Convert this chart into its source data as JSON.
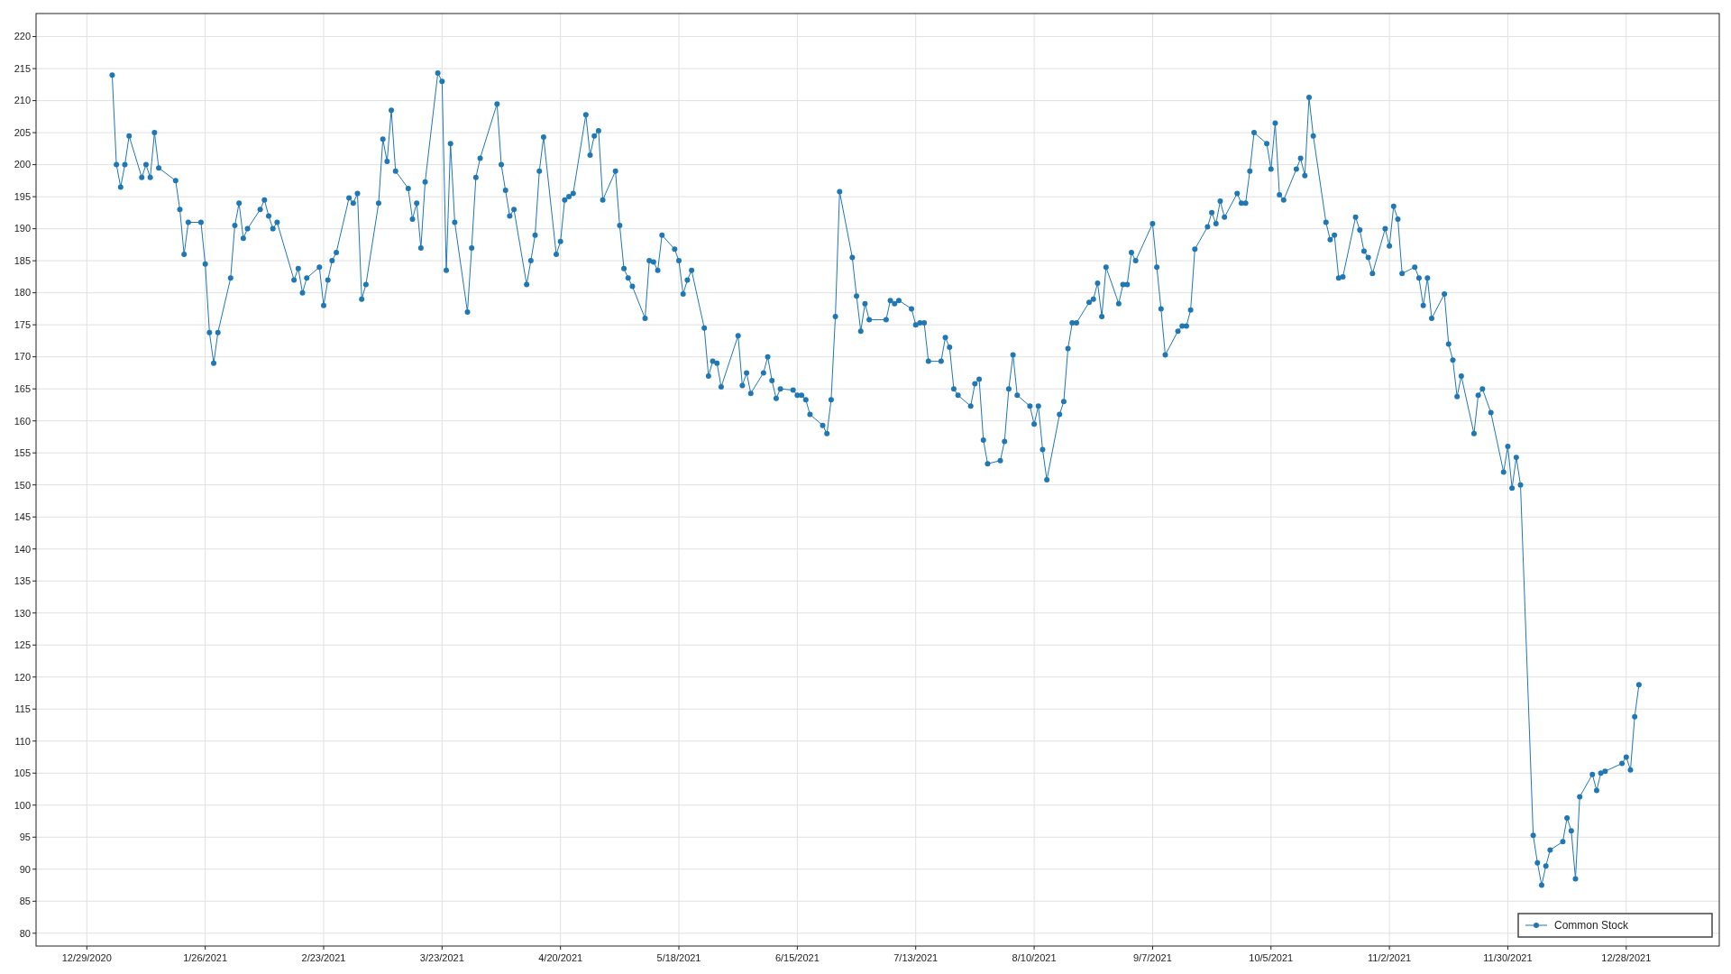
{
  "chart_data": {
    "type": "line",
    "marker": "circle",
    "grid": true,
    "legend": "bottom right",
    "line_style": "solid",
    "xlim": [
      "2020-12-17",
      "2022-01-19"
    ],
    "xticks": [
      {
        "value": "2020-12-29",
        "label": "12/29/2020"
      },
      {
        "value": "2021-01-26",
        "label": "1/26/2021"
      },
      {
        "value": "2021-02-23",
        "label": "2/23/2021"
      },
      {
        "value": "2021-03-23",
        "label": "3/23/2021"
      },
      {
        "value": "2021-04-20",
        "label": "4/20/2021"
      },
      {
        "value": "2021-05-18",
        "label": "5/18/2021"
      },
      {
        "value": "2021-06-15",
        "label": "6/15/2021"
      },
      {
        "value": "2021-07-13",
        "label": "7/13/2021"
      },
      {
        "value": "2021-08-10",
        "label": "8/10/2021"
      },
      {
        "value": "2021-09-07",
        "label": "9/7/2021"
      },
      {
        "value": "2021-10-05",
        "label": "10/5/2021"
      },
      {
        "value": "2021-11-02",
        "label": "11/2/2021"
      },
      {
        "value": "2021-11-30",
        "label": "11/30/2021"
      },
      {
        "value": "2021-12-28",
        "label": "12/28/2021"
      }
    ],
    "ylim": [
      78,
      223.6
    ],
    "yticks": [
      80,
      85,
      90,
      95,
      100,
      105,
      110,
      115,
      120,
      125,
      130,
      135,
      140,
      145,
      150,
      155,
      160,
      165,
      170,
      175,
      180,
      185,
      190,
      195,
      200,
      205,
      210,
      215,
      220
    ],
    "series": [
      {
        "name": "Common Stock",
        "color": "#1f77b4",
        "x": [
          "2021-01-04",
          "2021-01-05",
          "2021-01-06",
          "2021-01-07",
          "2021-01-08",
          "2021-01-11",
          "2021-01-12",
          "2021-01-13",
          "2021-01-14",
          "2021-01-15",
          "2021-01-19",
          "2021-01-20",
          "2021-01-21",
          "2021-01-22",
          "2021-01-25",
          "2021-01-26",
          "2021-01-27",
          "2021-01-28",
          "2021-01-29",
          "2021-02-01",
          "2021-02-02",
          "2021-02-03",
          "2021-02-04",
          "2021-02-05",
          "2021-02-08",
          "2021-02-09",
          "2021-02-10",
          "2021-02-11",
          "2021-02-12",
          "2021-02-16",
          "2021-02-17",
          "2021-02-18",
          "2021-02-19",
          "2021-02-22",
          "2021-02-23",
          "2021-02-24",
          "2021-02-25",
          "2021-02-26",
          "2021-03-01",
          "2021-03-02",
          "2021-03-03",
          "2021-03-04",
          "2021-03-05",
          "2021-03-08",
          "2021-03-09",
          "2021-03-10",
          "2021-03-11",
          "2021-03-12",
          "2021-03-15",
          "2021-03-16",
          "2021-03-17",
          "2021-03-18",
          "2021-03-19",
          "2021-03-22",
          "2021-03-23",
          "2021-03-24",
          "2021-03-25",
          "2021-03-26",
          "2021-03-29",
          "2021-03-30",
          "2021-03-31",
          "2021-04-01",
          "2021-04-05",
          "2021-04-06",
          "2021-04-07",
          "2021-04-08",
          "2021-04-09",
          "2021-04-12",
          "2021-04-13",
          "2021-04-14",
          "2021-04-15",
          "2021-04-16",
          "2021-04-19",
          "2021-04-20",
          "2021-04-21",
          "2021-04-22",
          "2021-04-23",
          "2021-04-26",
          "2021-04-27",
          "2021-04-28",
          "2021-04-29",
          "2021-04-30",
          "2021-05-03",
          "2021-05-04",
          "2021-05-05",
          "2021-05-06",
          "2021-05-07",
          "2021-05-10",
          "2021-05-11",
          "2021-05-12",
          "2021-05-13",
          "2021-05-14",
          "2021-05-17",
          "2021-05-18",
          "2021-05-19",
          "2021-05-20",
          "2021-05-21",
          "2021-05-24",
          "2021-05-25",
          "2021-05-26",
          "2021-05-27",
          "2021-05-28",
          "2021-06-01",
          "2021-06-02",
          "2021-06-03",
          "2021-06-04",
          "2021-06-07",
          "2021-06-08",
          "2021-06-09",
          "2021-06-10",
          "2021-06-11",
          "2021-06-14",
          "2021-06-15",
          "2021-06-16",
          "2021-06-17",
          "2021-06-18",
          "2021-06-21",
          "2021-06-22",
          "2021-06-23",
          "2021-06-24",
          "2021-06-25",
          "2021-06-28",
          "2021-06-29",
          "2021-06-30",
          "2021-07-01",
          "2021-07-02",
          "2021-07-06",
          "2021-07-07",
          "2021-07-08",
          "2021-07-09",
          "2021-07-12",
          "2021-07-13",
          "2021-07-14",
          "2021-07-15",
          "2021-07-16",
          "2021-07-19",
          "2021-07-20",
          "2021-07-21",
          "2021-07-22",
          "2021-07-23",
          "2021-07-26",
          "2021-07-27",
          "2021-07-28",
          "2021-07-29",
          "2021-07-30",
          "2021-08-02",
          "2021-08-03",
          "2021-08-04",
          "2021-08-05",
          "2021-08-06",
          "2021-08-09",
          "2021-08-10",
          "2021-08-11",
          "2021-08-12",
          "2021-08-13",
          "2021-08-16",
          "2021-08-17",
          "2021-08-18",
          "2021-08-19",
          "2021-08-20",
          "2021-08-23",
          "2021-08-24",
          "2021-08-25",
          "2021-08-26",
          "2021-08-27",
          "2021-08-30",
          "2021-08-31",
          "2021-09-01",
          "2021-09-02",
          "2021-09-03",
          "2021-09-07",
          "2021-09-08",
          "2021-09-09",
          "2021-09-10",
          "2021-09-13",
          "2021-09-14",
          "2021-09-15",
          "2021-09-16",
          "2021-09-17",
          "2021-09-20",
          "2021-09-21",
          "2021-09-22",
          "2021-09-23",
          "2021-09-24",
          "2021-09-27",
          "2021-09-28",
          "2021-09-29",
          "2021-09-30",
          "2021-10-01",
          "2021-10-04",
          "2021-10-05",
          "2021-10-06",
          "2021-10-07",
          "2021-10-08",
          "2021-10-11",
          "2021-10-12",
          "2021-10-13",
          "2021-10-14",
          "2021-10-15",
          "2021-10-18",
          "2021-10-19",
          "2021-10-20",
          "2021-10-21",
          "2021-10-22",
          "2021-10-25",
          "2021-10-26",
          "2021-10-27",
          "2021-10-28",
          "2021-10-29",
          "2021-11-01",
          "2021-11-02",
          "2021-11-03",
          "2021-11-04",
          "2021-11-05",
          "2021-11-08",
          "2021-11-09",
          "2021-11-10",
          "2021-11-11",
          "2021-11-12",
          "2021-11-15",
          "2021-11-16",
          "2021-11-17",
          "2021-11-18",
          "2021-11-19",
          "2021-11-22",
          "2021-11-23",
          "2021-11-24",
          "2021-11-26",
          "2021-11-29",
          "2021-11-30",
          "2021-12-01",
          "2021-12-02",
          "2021-12-03",
          "2021-12-06",
          "2021-12-07",
          "2021-12-08",
          "2021-12-09",
          "2021-12-10",
          "2021-12-13",
          "2021-12-14",
          "2021-12-15",
          "2021-12-16",
          "2021-12-17",
          "2021-12-20",
          "2021-12-21",
          "2021-12-22",
          "2021-12-23",
          "2021-12-27",
          "2021-12-28",
          "2021-12-29",
          "2021-12-30",
          "2021-12-31"
        ],
        "values": [
          214,
          200,
          196.5,
          200,
          204.5,
          198,
          200,
          198,
          205,
          199.5,
          197.5,
          193,
          186,
          191,
          191,
          184.5,
          173.8,
          169,
          173.8,
          182.3,
          190.5,
          194,
          188.5,
          190,
          193,
          194.5,
          192,
          190,
          191,
          182,
          183.8,
          180,
          182.3,
          184,
          178,
          182,
          185,
          186.3,
          194.8,
          194,
          195.5,
          179,
          181.3,
          194,
          204,
          200.5,
          208.5,
          199,
          196.3,
          191.5,
          194,
          187,
          197.3,
          214.3,
          213,
          183.5,
          203.3,
          191,
          177,
          187,
          198,
          201,
          209.5,
          200,
          196,
          192,
          193,
          181.3,
          185,
          189,
          199,
          204.3,
          186,
          188,
          194.5,
          195,
          195.5,
          207.8,
          201.5,
          204.5,
          205.3,
          194.5,
          199,
          190.5,
          183.8,
          182.3,
          181,
          176,
          185,
          184.8,
          183.5,
          189,
          186.8,
          185,
          179.8,
          182,
          183.5,
          174.5,
          167,
          169.3,
          169,
          165.3,
          173.3,
          165.5,
          167.5,
          164.3,
          167.5,
          170,
          166.3,
          163.5,
          165,
          164.8,
          164,
          164,
          163.3,
          161,
          159.3,
          158,
          163.3,
          176.3,
          195.8,
          185.5,
          179.5,
          174,
          178.3,
          175.8,
          175.8,
          178.8,
          178.3,
          178.8,
          177.5,
          175,
          175.3,
          175.3,
          169.3,
          169.3,
          173,
          171.5,
          165,
          164,
          162.3,
          165.8,
          166.5,
          157,
          153.3,
          153.8,
          156.8,
          165,
          170.3,
          164,
          162.3,
          159.5,
          162.3,
          155.5,
          150.8,
          161,
          163,
          171.3,
          175.3,
          175.3,
          178.5,
          179,
          181.5,
          176.3,
          184,
          178.3,
          181.3,
          181.3,
          186.3,
          185,
          190.8,
          184,
          177.5,
          170.3,
          174,
          174.8,
          174.8,
          177.3,
          186.8,
          190.3,
          192.5,
          190.8,
          194.3,
          191.8,
          195.5,
          194,
          194,
          199,
          205,
          203.3,
          199.3,
          206.5,
          195.3,
          194.5,
          199.3,
          201,
          198.3,
          210.5,
          204.5,
          191,
          188.3,
          189,
          182.3,
          182.5,
          191.8,
          189.8,
          186.5,
          185.5,
          183,
          190,
          187.3,
          193.5,
          191.5,
          183,
          184,
          182.3,
          178,
          182.3,
          176,
          179.8,
          172,
          169.5,
          163.8,
          167,
          158,
          164,
          165,
          161.3,
          152,
          156,
          149.5,
          154.3,
          150,
          95.3,
          91,
          87.5,
          90.5,
          93,
          94.3,
          98,
          96,
          88.5,
          101.3,
          104.8,
          102.3,
          105,
          105.3,
          106.5,
          107.5,
          105.5,
          113.8,
          118.8
        ]
      }
    ]
  }
}
